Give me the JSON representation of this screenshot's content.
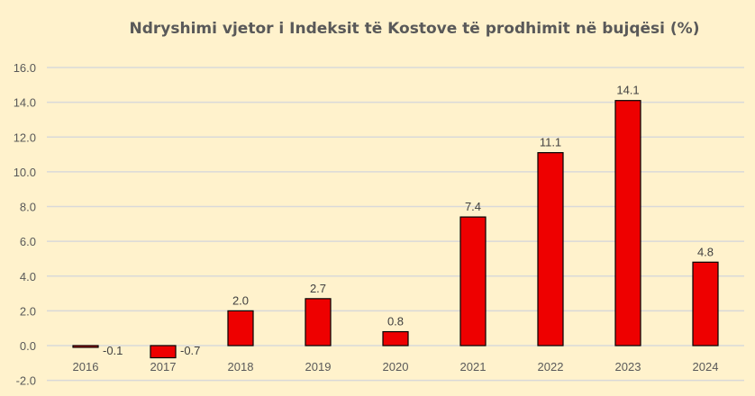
{
  "chart_data": {
    "type": "bar",
    "title": "Ndryshimi vjetor i Indeksit të Kostove të prodhimit në bujqësi (%)",
    "xlabel": "",
    "ylabel": "",
    "categories": [
      "2016",
      "2017",
      "2018",
      "2019",
      "2020",
      "2021",
      "2022",
      "2023",
      "2024"
    ],
    "values": [
      -0.1,
      -0.7,
      2.0,
      2.7,
      0.8,
      7.4,
      11.1,
      14.1,
      4.8
    ],
    "data_labels": [
      "-0.1",
      "-0.7",
      "2.0",
      "2.7",
      "0.8",
      "7.4",
      "11.1",
      "14.1",
      "4.8"
    ],
    "ylim": [
      -2,
      16
    ],
    "yticks": [
      "-2.0",
      "0.0",
      "2.0",
      "4.0",
      "6.0",
      "8.0",
      "10.0",
      "12.0",
      "14.0",
      "16.0"
    ],
    "grid": true,
    "legend": "none",
    "colors": {
      "bar": "#ee0000",
      "bar_border": "#000000",
      "background": "#fff2cc",
      "grid": "#d9d9d9"
    }
  }
}
